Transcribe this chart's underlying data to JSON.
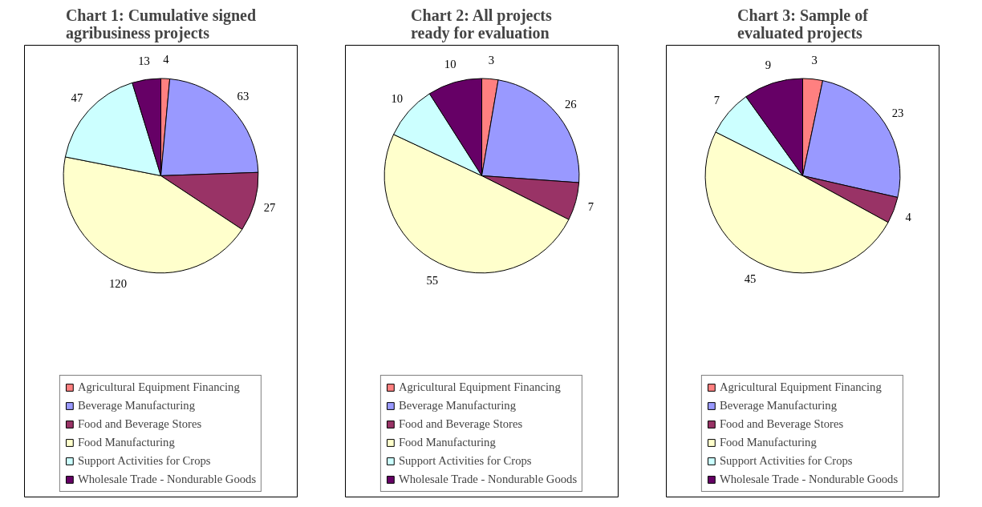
{
  "chart_data": [
    {
      "type": "pie",
      "title": "Chart 1: Cumulative signed agribusiness projects",
      "categories": [
        "Agricultural Equipment Financing",
        "Beverage Manufacturing",
        "Food and Beverage Stores",
        "Food Manufacturing",
        "Support Activities for Crops",
        "Wholesale Trade - Nondurable Goods"
      ],
      "values": [
        4,
        63,
        27,
        120,
        47,
        13
      ],
      "colors": [
        "#ff8080",
        "#9999ff",
        "#993366",
        "#ffffcc",
        "#ccffff",
        "#660066"
      ],
      "data_labels": true,
      "legend": "bottom"
    },
    {
      "type": "pie",
      "title": "Chart 2: All projects ready for evaluation",
      "categories": [
        "Agricultural Equipment Financing",
        "Beverage Manufacturing",
        "Food and Beverage Stores",
        "Food Manufacturing",
        "Support Activities for Crops",
        "Wholesale Trade - Nondurable Goods"
      ],
      "values": [
        3,
        26,
        7,
        55,
        10,
        10
      ],
      "colors": [
        "#ff8080",
        "#9999ff",
        "#993366",
        "#ffffcc",
        "#ccffff",
        "#660066"
      ],
      "data_labels": true,
      "legend": "bottom"
    },
    {
      "type": "pie",
      "title": "Chart 3: Sample of evaluated projects",
      "categories": [
        "Agricultural Equipment Financing",
        "Beverage Manufacturing",
        "Food and Beverage Stores",
        "Food Manufacturing",
        "Support Activities for Crops",
        "Wholesale Trade - Nondurable Goods"
      ],
      "values": [
        3,
        23,
        4,
        45,
        7,
        9
      ],
      "colors": [
        "#ff8080",
        "#9999ff",
        "#993366",
        "#ffffcc",
        "#ccffff",
        "#660066"
      ],
      "data_labels": true,
      "legend": "bottom"
    }
  ]
}
